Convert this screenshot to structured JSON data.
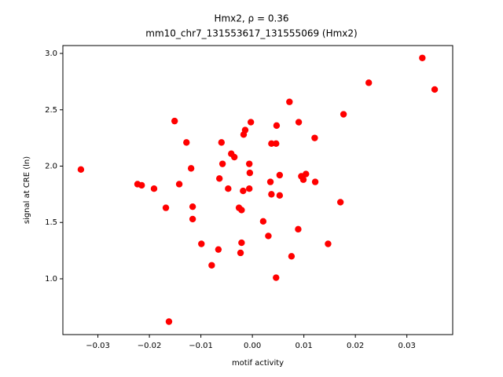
{
  "chart_data": {
    "type": "scatter",
    "title": "Hmx2, ρ = 0.36",
    "subtitle": "mm10_chr7_131553617_131555069 (Hmx2)",
    "x_label": "motif activity",
    "y_label": "signal at CRE (ln)",
    "color": "#ff0000",
    "x": [
      -0.0333,
      -0.0223,
      -0.0215,
      -0.0191,
      -0.0168,
      -0.0151,
      -0.0128,
      -0.0119,
      -0.0142,
      -0.0116,
      -0.0116,
      -0.0099,
      -0.0079,
      -0.0066,
      -0.0064,
      -0.006,
      -0.0058,
      -0.0047,
      -0.0041,
      -0.0035,
      -0.0026,
      -0.0021,
      -0.0021,
      -0.0023,
      -0.0018,
      -0.0017,
      -0.0014,
      -0.0006,
      -0.0006,
      -0.0003,
      -0.0005,
      0.0021,
      0.0031,
      0.0035,
      0.0037,
      0.0037,
      0.0046,
      0.0047,
      0.0053,
      0.0053,
      0.0046,
      0.0072,
      0.0076,
      0.0089,
      0.009,
      0.0095,
      0.0099,
      0.0104,
      0.0121,
      0.0122,
      0.0147,
      0.0171,
      0.0177,
      0.0226,
      0.033,
      0.0354,
      -0.0162
    ],
    "values": [
      1.97,
      1.84,
      1.83,
      1.8,
      1.63,
      2.4,
      2.21,
      1.98,
      1.84,
      1.64,
      1.53,
      1.31,
      1.12,
      1.26,
      1.89,
      2.21,
      2.02,
      1.8,
      2.11,
      2.08,
      1.63,
      1.61,
      1.32,
      1.23,
      1.78,
      2.28,
      2.32,
      2.02,
      1.8,
      2.39,
      1.94,
      1.51,
      1.38,
      1.86,
      1.75,
      2.2,
      2.2,
      2.36,
      1.92,
      1.74,
      1.01,
      2.57,
      1.2,
      1.44,
      2.39,
      1.91,
      1.88,
      1.93,
      2.25,
      1.86,
      1.31,
      1.68,
      2.46,
      2.74,
      2.96,
      2.68,
      0.62
    ],
    "xlim": [
      -0.0368,
      0.0389
    ],
    "ylim": [
      0.505,
      3.07
    ],
    "xticks": [
      {
        "value": -0.03,
        "label": "−0.03"
      },
      {
        "value": -0.02,
        "label": "−0.02"
      },
      {
        "value": -0.01,
        "label": "−0.01"
      },
      {
        "value": 0,
        "label": "0.00"
      },
      0.01,
      0.02,
      0.03
    ],
    "yticks": [
      {
        "value": 1,
        "label": "1.0"
      },
      1.5,
      {
        "value": 2,
        "label": "2.0"
      },
      2.5,
      {
        "value": 3,
        "label": "3.0"
      }
    ],
    "grid": false
  }
}
